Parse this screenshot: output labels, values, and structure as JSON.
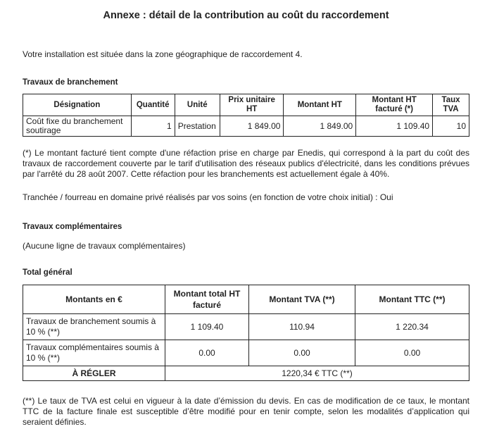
{
  "title": "Annexe : détail de la contribution au coût du raccordement",
  "zone_text": "Votre installation est située dans la zone géographique de raccordement 4.",
  "branchement": {
    "heading": "Travaux de branchement",
    "headers": [
      "Désignation",
      "Quantité",
      "Unité",
      "Prix unitaire HT",
      "Montant HT",
      "Montant HT facturé  (*)",
      "Taux TVA"
    ],
    "row": [
      "Coût fixe du branchement soutirage",
      "1",
      "Prestation",
      "1 849.00",
      "1 849.00",
      "1 109.40",
      "10"
    ],
    "note": "(*) Le montant facturé tient compte d'une réfaction prise en charge par Enedis, qui correspond à la part du coût des travaux de raccordement couverte par le tarif d'utilisation des réseaux publics d'électricité, dans les conditions prévues par l'arrêté du 28 août 2007. Cette réfaction pour les branchements est actuellement égale à 40%.",
    "tranchee": "Tranchée / fourreau en domaine privé réalisés par vos soins (en fonction de votre choix initial) : Oui"
  },
  "complementaires": {
    "heading": "Travaux complémentaires",
    "text": "(Aucune ligne de travaux complémentaires)"
  },
  "total": {
    "heading": "Total général",
    "headers": [
      "Montants en €",
      "Montant total HT facturé",
      "Montant TVA (**)",
      "Montant TTC (**)"
    ],
    "rows": [
      [
        "Travaux de branchement soumis à 10 % (**)",
        "1 109.40",
        "110.94",
        "1 220.34"
      ],
      [
        "Travaux complémentaires soumis à 10 % (**)",
        "0.00",
        "0.00",
        "0.00"
      ]
    ],
    "regler_label": "À RÉGLER",
    "regler_value": "1220,34 € TTC (**)",
    "note": "(**) Le taux de TVA est celui en vigueur à la date d’émission du devis. En cas de modification de ce taux, le montant TTC de la facture finale est susceptible d’être modifié pour en tenir compte, selon les modalités d’application qui seraient définies."
  }
}
